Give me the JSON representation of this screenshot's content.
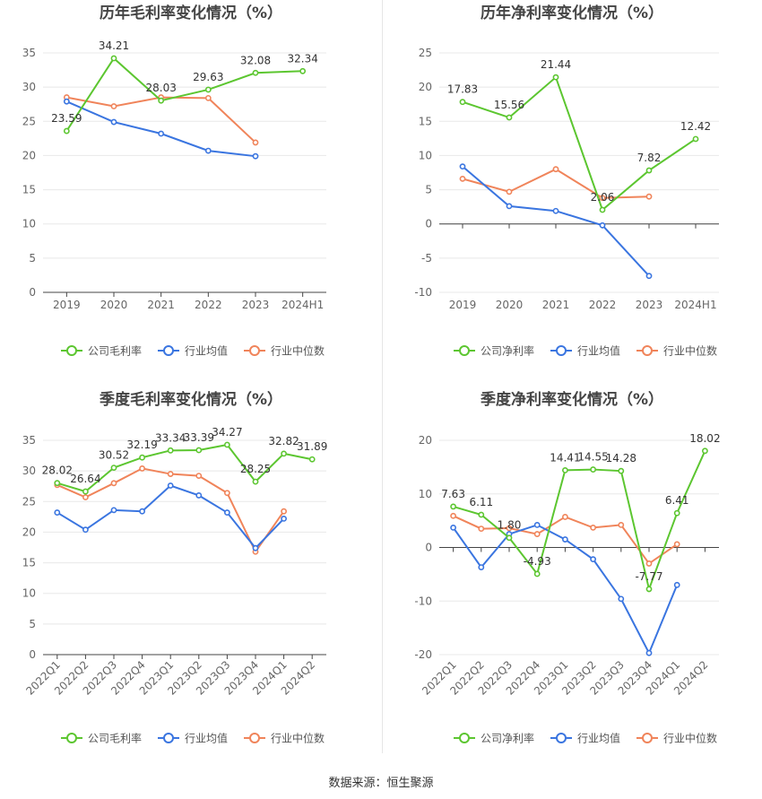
{
  "colors": {
    "company": "#5cc630",
    "industry_avg": "#3a75e0",
    "industry_median": "#f0845a",
    "grid": "#e8e8e8",
    "axis": "#444444",
    "tick_label": "#666666",
    "title": "#444444",
    "data_label": "#333333"
  },
  "source_text": "数据来源：恒生聚源",
  "chart_data": [
    {
      "id": "annual-gross",
      "type": "line",
      "title": "历年毛利率变化情况（%）",
      "categories": [
        "2019",
        "2020",
        "2021",
        "2022",
        "2023",
        "2024H1"
      ],
      "ylim": [
        0,
        35
      ],
      "yticks": [
        0,
        5,
        10,
        15,
        20,
        25,
        30,
        35
      ],
      "xlabel": "",
      "ylabel": "",
      "rotate_labels": false,
      "series": [
        {
          "name": "公司毛利率",
          "key": "company",
          "values": [
            23.59,
            34.21,
            28.03,
            29.63,
            32.08,
            32.34
          ],
          "labels": [
            "23.59",
            "34.21",
            "28.03",
            "29.63",
            "32.08",
            "32.34"
          ]
        },
        {
          "name": "行业均值",
          "key": "industry_avg",
          "values": [
            27.9,
            24.9,
            23.2,
            20.7,
            19.9,
            null
          ]
        },
        {
          "name": "行业中位数",
          "key": "industry_median",
          "values": [
            28.5,
            27.2,
            28.5,
            28.4,
            21.9,
            null
          ]
        }
      ],
      "legend": [
        "公司毛利率",
        "行业均值",
        "行业中位数"
      ]
    },
    {
      "id": "annual-net",
      "type": "line",
      "title": "历年净利率变化情况（%）",
      "categories": [
        "2019",
        "2020",
        "2021",
        "2022",
        "2023",
        "2024H1"
      ],
      "ylim": [
        -10,
        25
      ],
      "yticks": [
        -10,
        -5,
        0,
        5,
        10,
        15,
        20,
        25
      ],
      "xlabel": "",
      "ylabel": "",
      "rotate_labels": false,
      "series": [
        {
          "name": "公司净利率",
          "key": "company",
          "values": [
            17.83,
            15.56,
            21.44,
            2.06,
            7.82,
            12.42
          ],
          "labels": [
            "17.83",
            "15.56",
            "21.44",
            "2.06",
            "7.82",
            "12.42"
          ]
        },
        {
          "name": "行业均值",
          "key": "industry_avg",
          "values": [
            8.4,
            2.6,
            1.9,
            -0.2,
            -7.6,
            null
          ]
        },
        {
          "name": "行业中位数",
          "key": "industry_median",
          "values": [
            6.6,
            4.7,
            8.0,
            3.8,
            4.0,
            null
          ]
        }
      ],
      "legend": [
        "公司净利率",
        "行业均值",
        "行业中位数"
      ]
    },
    {
      "id": "quarterly-gross",
      "type": "line",
      "title": "季度毛利率变化情况（%）",
      "categories": [
        "2022Q1",
        "2022Q2",
        "2022Q3",
        "2022Q4",
        "2023Q1",
        "2023Q2",
        "2023Q3",
        "2023Q4",
        "2024Q1",
        "2024Q2"
      ],
      "ylim": [
        0,
        35
      ],
      "yticks": [
        0,
        5,
        10,
        15,
        20,
        25,
        30,
        35
      ],
      "xlabel": "",
      "ylabel": "",
      "rotate_labels": true,
      "series": [
        {
          "name": "公司毛利率",
          "key": "company",
          "values": [
            28.02,
            26.64,
            30.52,
            32.19,
            33.34,
            33.39,
            34.27,
            28.25,
            32.82,
            31.89
          ],
          "labels": [
            "28.02",
            "26.64",
            "30.52",
            "32.19",
            "33.34",
            "33.39",
            "34.27",
            "28.25",
            "32.82",
            "31.89"
          ]
        },
        {
          "name": "行业均值",
          "key": "industry_avg",
          "values": [
            23.2,
            20.4,
            23.6,
            23.4,
            27.6,
            26.0,
            23.2,
            17.4,
            22.2,
            null
          ]
        },
        {
          "name": "行业中位数",
          "key": "industry_median",
          "values": [
            27.7,
            25.7,
            28.0,
            30.4,
            29.5,
            29.2,
            26.4,
            16.8,
            23.4,
            null
          ]
        }
      ],
      "legend": [
        "公司毛利率",
        "行业均值",
        "行业中位数"
      ]
    },
    {
      "id": "quarterly-net",
      "type": "line",
      "title": "季度净利率变化情况（%）",
      "categories": [
        "2022Q1",
        "2022Q2",
        "2022Q3",
        "2022Q4",
        "2023Q1",
        "2023Q2",
        "2023Q3",
        "2023Q4",
        "2024Q1",
        "2024Q2"
      ],
      "ylim": [
        -20,
        20
      ],
      "yticks": [
        -20,
        -10,
        0,
        10,
        20
      ],
      "xlabel": "",
      "ylabel": "",
      "rotate_labels": true,
      "series": [
        {
          "name": "公司净利率",
          "key": "company",
          "values": [
            7.63,
            6.11,
            1.8,
            -4.93,
            14.41,
            14.55,
            14.28,
            -7.77,
            6.41,
            18.02
          ],
          "labels": [
            "7.63",
            "6.11",
            "1.80",
            "-4.93",
            "14.41",
            "14.55",
            "14.28",
            "-7.77",
            "6.41",
            "18.02"
          ]
        },
        {
          "name": "行业均值",
          "key": "industry_avg",
          "values": [
            3.7,
            -3.7,
            2.5,
            4.2,
            1.5,
            -2.2,
            -9.6,
            -19.7,
            -7.0,
            null
          ]
        },
        {
          "name": "行业中位数",
          "key": "industry_median",
          "values": [
            5.9,
            3.5,
            3.6,
            2.5,
            5.7,
            3.7,
            4.2,
            -3.0,
            0.6,
            null
          ]
        }
      ],
      "legend": [
        "公司净利率",
        "行业均值",
        "行业中位数"
      ]
    }
  ]
}
